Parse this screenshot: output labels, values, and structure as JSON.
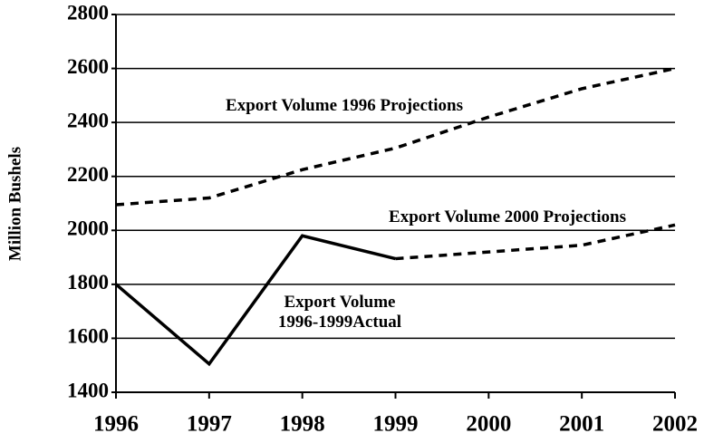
{
  "chart_data": {
    "type": "line",
    "y_label": "Million Bushels",
    "x": [
      1996,
      1997,
      1998,
      1999,
      2000,
      2001,
      2002
    ],
    "xlim": [
      1996,
      2002
    ],
    "xticks": [
      1996,
      1997,
      1998,
      1999,
      2000,
      2001,
      2002
    ],
    "ylim": [
      1400,
      2800
    ],
    "yticks": [
      1400,
      1600,
      1800,
      2000,
      2200,
      2400,
      2600,
      2800
    ],
    "grid": true,
    "series": [
      {
        "name": "Export Volume 1996 Projections",
        "color": "#000000",
        "line_style": "dashed",
        "values": [
          2095,
          2120,
          2225,
          2305,
          2420,
          2525,
          2600
        ]
      },
      {
        "name": "Export Volume 2000 Projections",
        "color": "#000000",
        "line_style": "dashed",
        "values": [
          null,
          null,
          null,
          1895,
          1920,
          1945,
          2020
        ]
      },
      {
        "name": "Export Volume\n1996-1999Actual",
        "color": "#000000",
        "line_style": "solid",
        "values": [
          1800,
          1505,
          1980,
          1895,
          null,
          null,
          null
        ]
      }
    ]
  }
}
